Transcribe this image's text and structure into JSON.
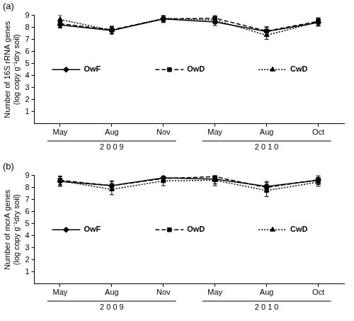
{
  "chart_data": [
    {
      "type": "line",
      "title": "(a)",
      "y_label": [
        "Number of 16S rRNA genes",
        "(log copy g⁻¹dry soil)"
      ],
      "categories": [
        "May",
        "Aug",
        "Nov",
        "May",
        "Aug",
        "Oct"
      ],
      "annotations": [
        "2 0 0 9",
        "2 0 1 0"
      ],
      "ylim": [
        0,
        9
      ],
      "yticks": [
        1,
        2,
        3,
        4,
        5,
        6,
        7,
        8,
        9
      ],
      "grid": false,
      "legend": "center",
      "series": [
        {
          "name": "OwF",
          "color": "#000000",
          "marker": "diamond",
          "line_style": "solid",
          "values": [
            8.2,
            7.75,
            8.7,
            8.45,
            7.65,
            8.4
          ],
          "errors": [
            0.25,
            0.3,
            0.3,
            0.3,
            0.35,
            0.3
          ]
        },
        {
          "name": "OwD",
          "color": "#000000",
          "marker": "square",
          "line_style": "dashed",
          "values": [
            8.3,
            7.8,
            8.7,
            8.75,
            7.7,
            8.5
          ],
          "errors": [
            0.3,
            0.3,
            0.25,
            0.25,
            0.35,
            0.3
          ]
        },
        {
          "name": "CwD",
          "color": "#000000",
          "marker": "triangle",
          "line_style": "dotted",
          "values": [
            8.65,
            7.75,
            8.75,
            8.6,
            7.35,
            8.45
          ],
          "errors": [
            0.35,
            0.3,
            0.3,
            0.3,
            0.35,
            0.3
          ]
        }
      ]
    },
    {
      "type": "line",
      "title": "(b)",
      "y_label": [
        "Number of mcrA genes",
        "(log copy g⁻¹dry soil)"
      ],
      "categories": [
        "May",
        "Aug",
        "Nov",
        "May",
        "Aug",
        "Oct"
      ],
      "annotations": [
        "2 0 0 9",
        "2 0 1 0"
      ],
      "ylim": [
        0,
        9
      ],
      "yticks": [
        1,
        2,
        3,
        4,
        5,
        6,
        7,
        8,
        9
      ],
      "grid": false,
      "legend": "center",
      "series": [
        {
          "name": "OwF",
          "color": "#000000",
          "marker": "diamond",
          "line_style": "solid",
          "values": [
            8.5,
            8.15,
            8.8,
            8.7,
            8.1,
            8.6
          ],
          "errors": [
            0.4,
            0.35,
            0.3,
            0.4,
            0.4,
            0.35
          ]
        },
        {
          "name": "OwD",
          "color": "#000000",
          "marker": "square",
          "line_style": "dashed",
          "values": [
            8.6,
            8.15,
            8.75,
            8.9,
            8.0,
            8.65
          ],
          "errors": [
            0.35,
            0.4,
            0.35,
            0.3,
            0.4,
            0.4
          ]
        },
        {
          "name": "CwD",
          "color": "#000000",
          "marker": "triangle",
          "line_style": "dotted",
          "values": [
            8.55,
            7.85,
            8.55,
            8.6,
            7.75,
            8.45
          ],
          "errors": [
            0.4,
            0.45,
            0.4,
            0.45,
            0.5,
            0.35
          ]
        }
      ]
    }
  ]
}
